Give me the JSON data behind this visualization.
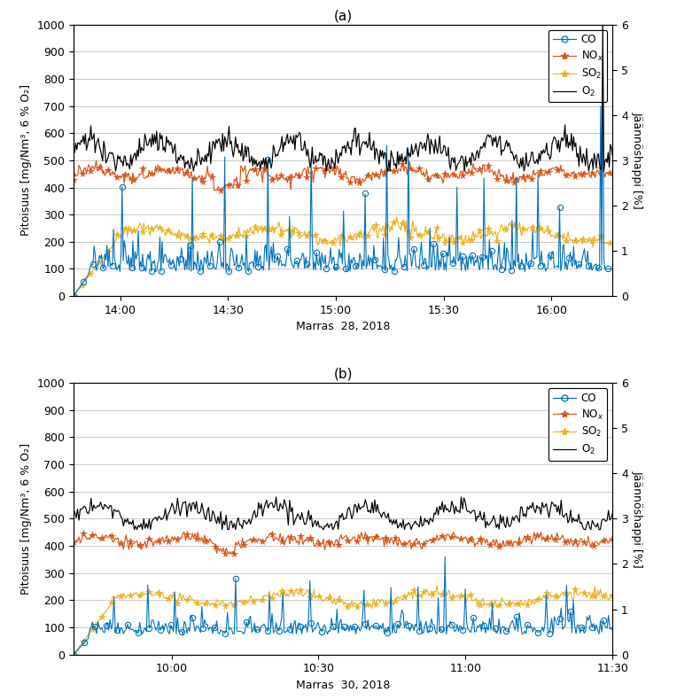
{
  "title_a": "(a)",
  "title_b": "(b)",
  "xlabel_a": "Marras  28, 2018",
  "xlabel_b": "Marras  30, 2018",
  "ylabel_left": "Pitoisuus [mg/Nm³, 6 % O₂]",
  "ylabel_right": "Jäännöshappi [%]",
  "ylim_left": [
    0,
    1000
  ],
  "ylim_right": [
    0,
    6
  ],
  "yticks_left": [
    0,
    100,
    200,
    300,
    400,
    500,
    600,
    700,
    800,
    900,
    1000
  ],
  "yticks_right": [
    0,
    1,
    2,
    3,
    4,
    5,
    6
  ],
  "colors": {
    "CO": "#0072BD",
    "NOx": "#D95319",
    "SO2": "#EDB120",
    "O2": "#000000"
  },
  "plot_a": {
    "xstart": 0,
    "xend": 150,
    "xtick_labels": [
      "14:00",
      "14:30",
      "15:00",
      "15:30",
      "16:00"
    ],
    "xtick_positions": [
      13,
      43,
      73,
      103,
      133
    ]
  },
  "plot_b": {
    "xstart": 0,
    "xend": 110,
    "xtick_labels": [
      "10:00",
      "10:30",
      "11:00",
      "11:30"
    ],
    "xtick_positions": [
      20,
      50,
      80,
      110
    ]
  },
  "figsize": [
    7.9,
    7.9
  ],
  "dpi": 100
}
